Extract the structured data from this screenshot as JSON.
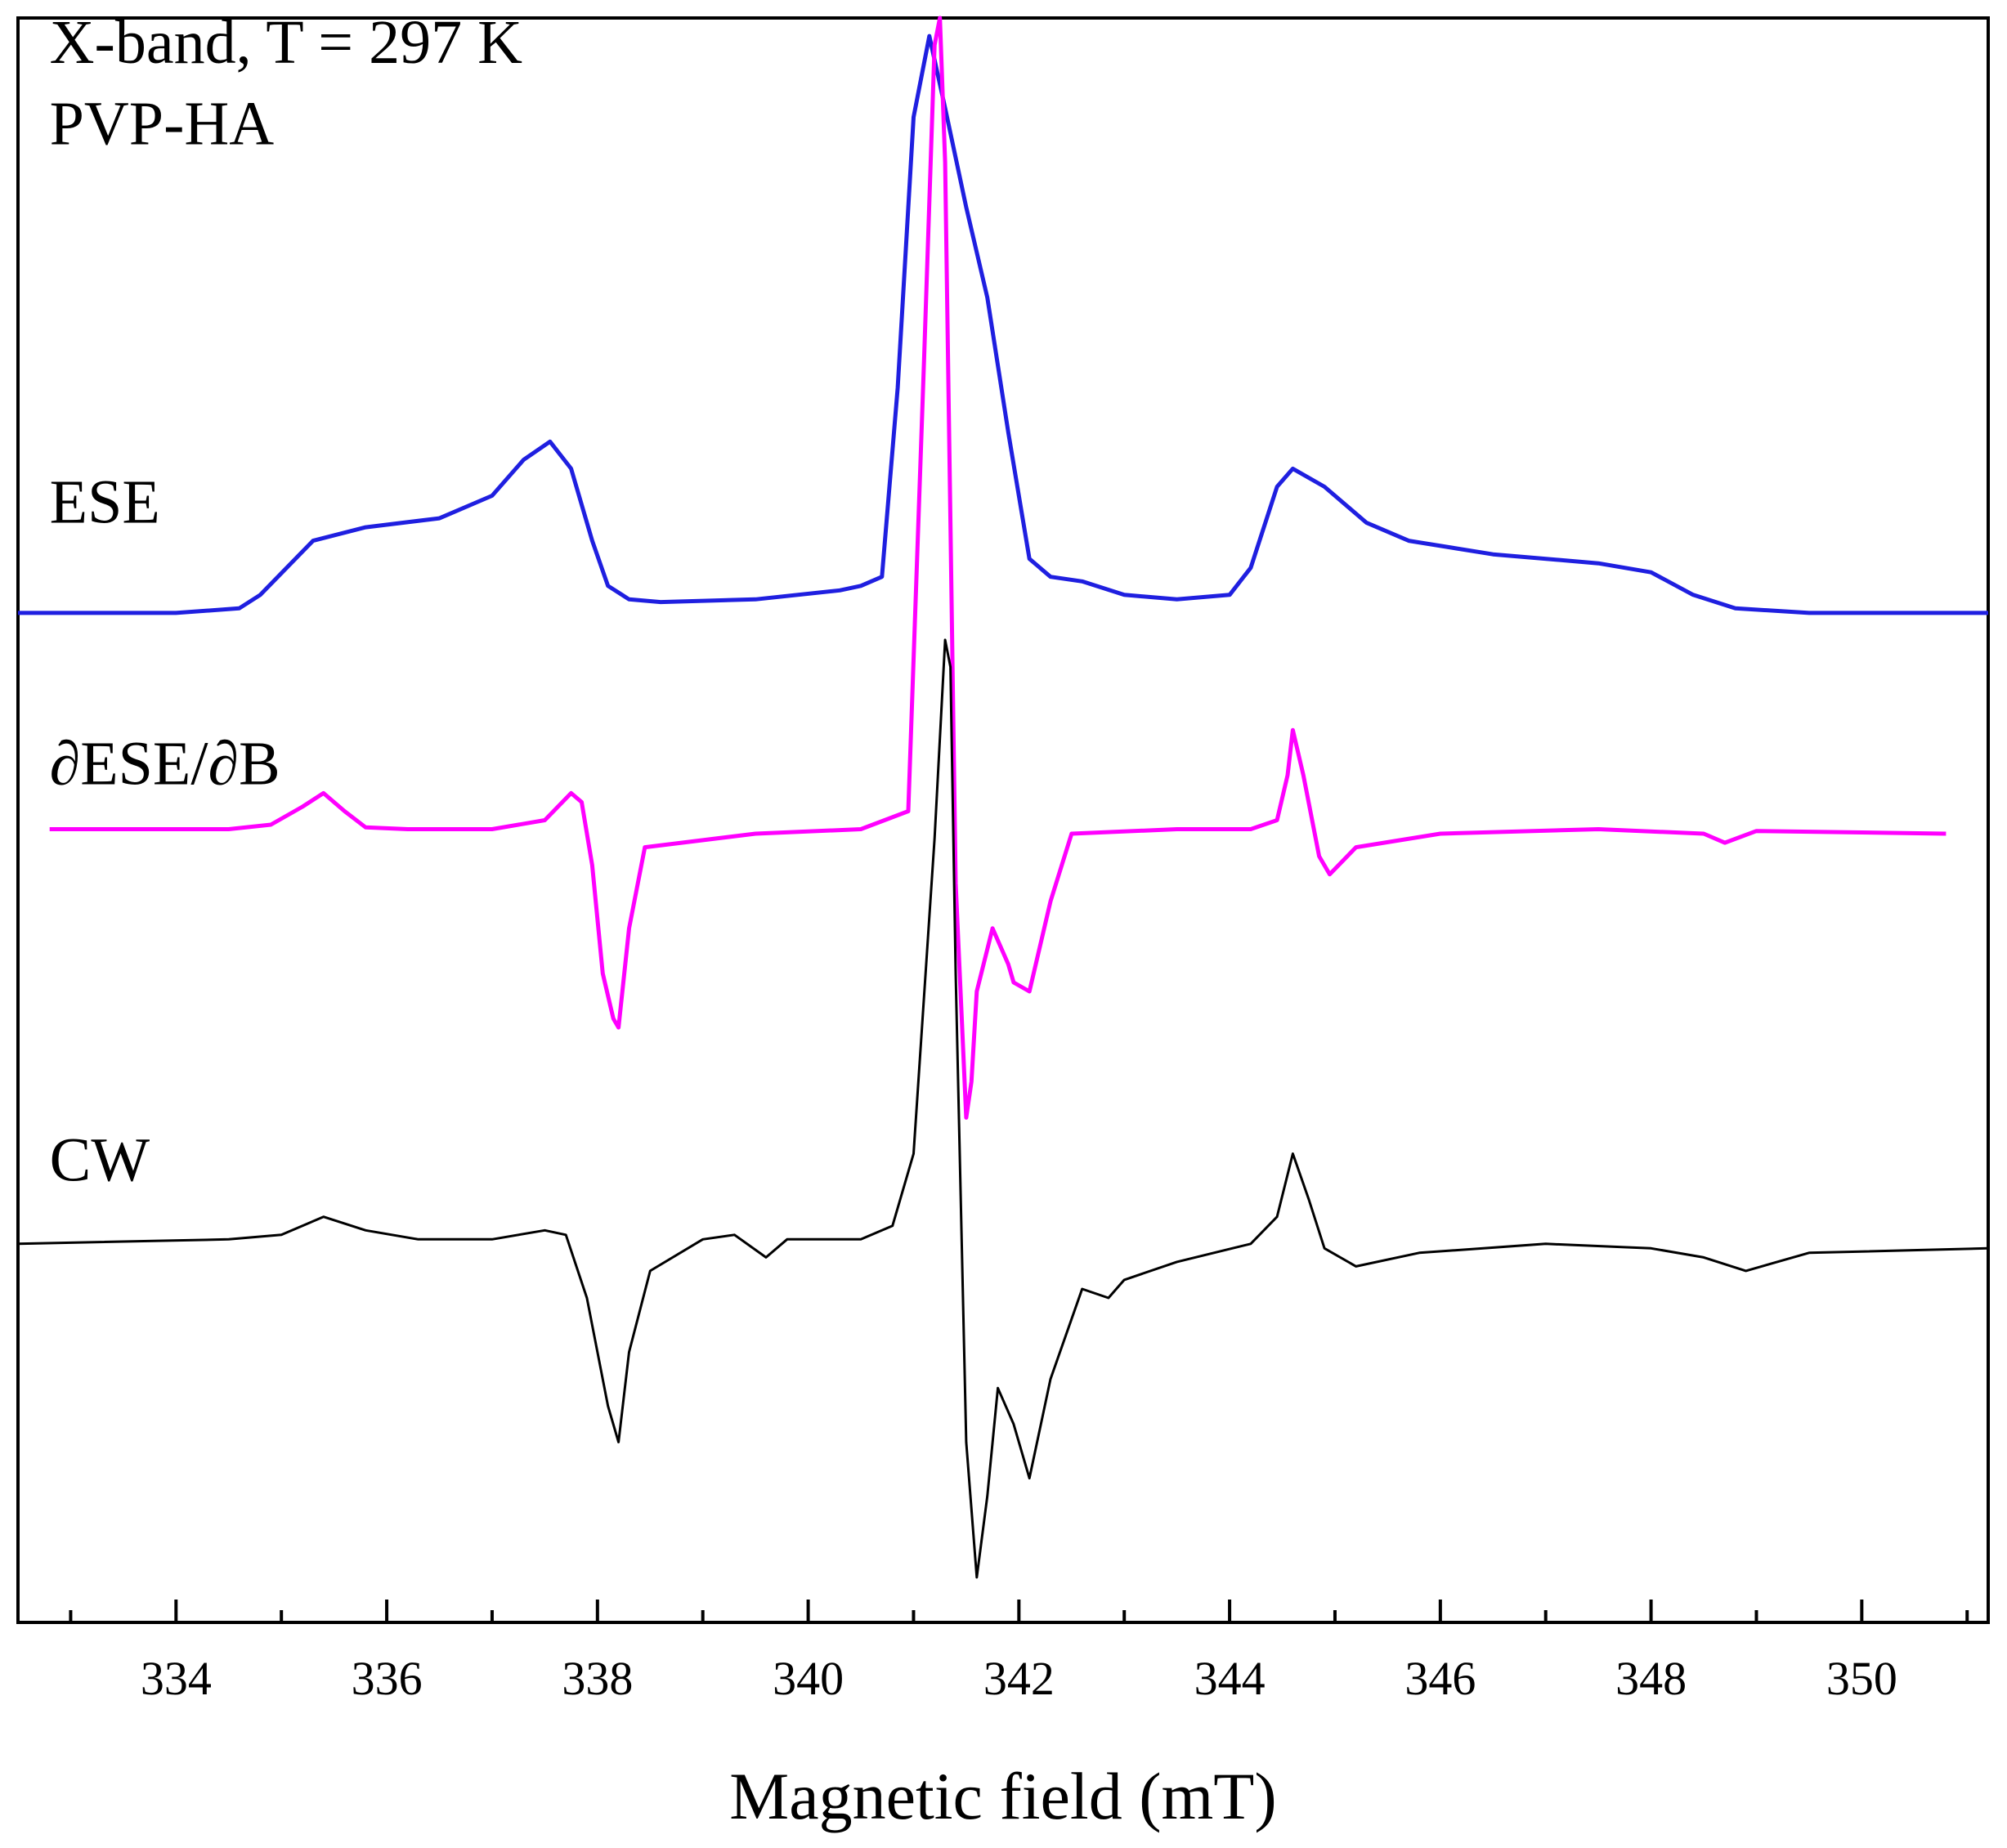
{
  "chart_data": {
    "type": "line",
    "xlabel": "Magnetic field (mT)",
    "ylabel": "",
    "xlim": [
      332.5,
      351.2
    ],
    "ylim": [
      -4.2,
      13.6
    ],
    "y_ticks_visible": false,
    "grid": false,
    "legend": "none",
    "x_ticks": [
      334,
      336,
      338,
      340,
      342,
      344,
      346,
      348,
      350
    ],
    "x_minor_ticks": [
      333,
      335,
      337,
      339,
      341,
      343,
      345,
      347,
      349,
      351
    ],
    "annotations": [
      {
        "text": "X-band, T = 297 K",
        "x": 332.8,
        "y": 13.1
      },
      {
        "text": "PVP-HA",
        "x": 332.8,
        "y": 12.2
      },
      {
        "text": "ESE",
        "x": 332.8,
        "y": 8.0
      },
      {
        "text": "∂ESE/∂B",
        "x": 332.8,
        "y": 5.1
      },
      {
        "text": "CW",
        "x": 332.8,
        "y": 0.7
      }
    ],
    "series": [
      {
        "label_ref": "ESE",
        "color": "#1f1fe0",
        "x": [
          332.5,
          334.0,
          334.6,
          334.8,
          335.3,
          335.8,
          336.5,
          337.0,
          337.3,
          337.55,
          337.75,
          337.95,
          338.1,
          338.3,
          338.6,
          339.5,
          340.3,
          340.5,
          340.7,
          340.85,
          341.0,
          341.15,
          341.3,
          341.5,
          341.7,
          341.9,
          342.1,
          342.3,
          342.6,
          343.0,
          343.5,
          344.0,
          344.2,
          344.45,
          344.6,
          344.9,
          345.3,
          345.7,
          346.5,
          347.5,
          348.0,
          348.4,
          348.8,
          349.5,
          351.2
        ],
        "y": [
          7.0,
          7.0,
          7.05,
          7.2,
          7.8,
          7.95,
          8.05,
          8.3,
          8.7,
          8.9,
          8.6,
          7.8,
          7.3,
          7.15,
          7.12,
          7.15,
          7.25,
          7.3,
          7.4,
          9.5,
          12.5,
          13.4,
          12.6,
          11.5,
          10.5,
          9.0,
          7.6,
          7.4,
          7.35,
          7.2,
          7.15,
          7.2,
          7.5,
          8.4,
          8.6,
          8.4,
          8.0,
          7.8,
          7.65,
          7.55,
          7.45,
          7.2,
          7.05,
          7.0,
          7.0
        ]
      },
      {
        "label_ref": "∂ESE/∂B",
        "color": "#ff00ff",
        "x": [
          332.8,
          334.5,
          334.9,
          335.2,
          335.4,
          335.6,
          335.8,
          336.2,
          337.0,
          337.5,
          337.75,
          337.85,
          337.95,
          338.05,
          338.15,
          338.2,
          338.3,
          338.45,
          339.5,
          340.5,
          340.95,
          341.1,
          341.2,
          341.25,
          341.3,
          341.35,
          341.4,
          341.5,
          341.55,
          341.6,
          341.75,
          341.9,
          341.95,
          342.1,
          342.3,
          342.5,
          343.5,
          344.2,
          344.45,
          344.55,
          344.6,
          344.7,
          344.85,
          344.95,
          345.2,
          346.0,
          347.5,
          348.5,
          348.7,
          349.0,
          350.8
        ],
        "y": [
          4.6,
          4.6,
          4.65,
          4.85,
          5.0,
          4.8,
          4.62,
          4.6,
          4.6,
          4.7,
          5.0,
          4.9,
          4.2,
          3.0,
          2.5,
          2.4,
          3.5,
          4.4,
          4.55,
          4.6,
          4.8,
          9.8,
          13.3,
          13.6,
          12.0,
          8.0,
          4.0,
          1.4,
          1.8,
          2.8,
          3.5,
          3.1,
          2.9,
          2.8,
          3.8,
          4.55,
          4.6,
          4.6,
          4.7,
          5.2,
          5.7,
          5.2,
          4.3,
          4.1,
          4.4,
          4.55,
          4.6,
          4.55,
          4.45,
          4.58,
          4.55
        ]
      },
      {
        "label_ref": "CW",
        "color": "#000000",
        "x": [
          332.5,
          334.5,
          335.0,
          335.4,
          335.8,
          336.3,
          337.0,
          337.5,
          337.7,
          337.9,
          338.1,
          338.2,
          338.3,
          338.5,
          339.0,
          339.3,
          339.6,
          339.8,
          340.5,
          340.8,
          341.0,
          341.2,
          341.3,
          341.35,
          341.4,
          341.5,
          341.6,
          341.7,
          341.8,
          341.95,
          342.1,
          342.3,
          342.6,
          342.85,
          343.0,
          343.5,
          344.2,
          344.45,
          344.6,
          344.75,
          344.9,
          345.2,
          345.8,
          347.0,
          348.0,
          348.5,
          348.9,
          349.5,
          351.2
        ],
        "y": [
          0.0,
          0.05,
          0.1,
          0.3,
          0.15,
          0.05,
          0.05,
          0.15,
          0.1,
          -0.6,
          -1.8,
          -2.2,
          -1.2,
          -0.3,
          0.05,
          0.1,
          -0.15,
          0.05,
          0.05,
          0.2,
          1.0,
          4.5,
          6.7,
          6.4,
          3.0,
          -2.2,
          -3.7,
          -2.8,
          -1.6,
          -2.0,
          -2.6,
          -1.5,
          -0.5,
          -0.6,
          -0.4,
          -0.2,
          0.0,
          0.3,
          1.0,
          0.5,
          -0.05,
          -0.25,
          -0.1,
          0.0,
          -0.05,
          -0.15,
          -0.3,
          -0.1,
          -0.05
        ]
      }
    ]
  }
}
